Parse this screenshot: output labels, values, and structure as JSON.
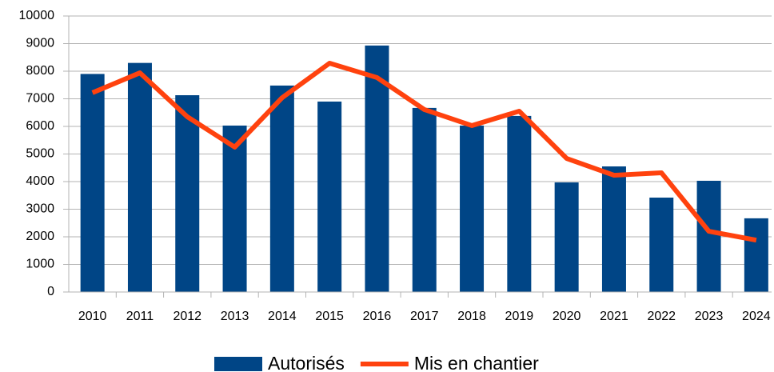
{
  "chart_data": {
    "type": "bar_line",
    "categories": [
      "2010",
      "2011",
      "2012",
      "2013",
      "2014",
      "2015",
      "2016",
      "2017",
      "2018",
      "2019",
      "2020",
      "2021",
      "2022",
      "2023",
      "2024"
    ],
    "series": [
      {
        "name": "Autorisés",
        "type": "bar",
        "color": "#004586",
        "values": [
          7900,
          8300,
          7130,
          6030,
          7480,
          6900,
          8930,
          6670,
          6030,
          6380,
          3970,
          4550,
          3420,
          4030,
          2670
        ]
      },
      {
        "name": "Mis en chantier",
        "type": "line",
        "color": "#ff420e",
        "values": [
          7220,
          7940,
          6350,
          5250,
          7040,
          8290,
          7770,
          6610,
          6030,
          6550,
          4840,
          4230,
          4320,
          2200,
          1880
        ]
      }
    ],
    "ylim": [
      0,
      10000
    ],
    "yticks": [
      0,
      1000,
      2000,
      3000,
      4000,
      5000,
      6000,
      7000,
      8000,
      9000,
      10000
    ],
    "grid": true,
    "legend": "bottom"
  }
}
